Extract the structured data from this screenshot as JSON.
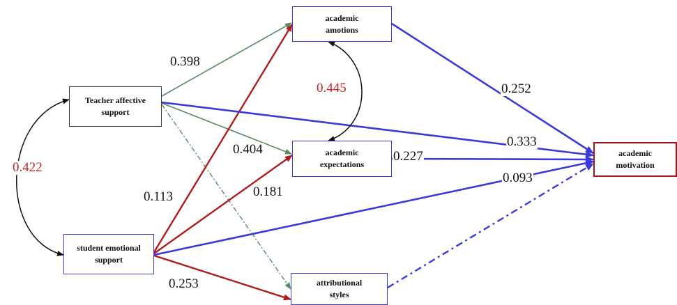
{
  "nodes": {
    "teacher": {
      "line1": "Teacher affective",
      "line2": "support"
    },
    "student": {
      "line1": "student emotional",
      "line2": "support"
    },
    "emotions": {
      "line1": "academic",
      "line2": "amotions"
    },
    "expectations": {
      "line1": "academic",
      "line2": "expectations"
    },
    "attributional": {
      "line1": "attributional",
      "line2": "styles"
    },
    "motivation": {
      "line1": "academic",
      "line2": "motivation"
    }
  },
  "coefficients": {
    "teacher_emotions": "0.398",
    "teacher_expectations": "0.404",
    "teacher_motivation": "0.333",
    "emotions_motivation": "0.252",
    "expectations_motivation": "0.227",
    "student_emotions": "0.113",
    "student_expectations": "0.181",
    "student_motivation": "0.093",
    "student_attributional": "0.253",
    "emotions_expectations_cov": "0.445",
    "teacher_student_cov": "0.422"
  },
  "colors": {
    "green_path": "#5a8a62",
    "red_path": "#b01c1c",
    "blue_path": "#3a3ad8",
    "covariance": "#111111",
    "covariance_label": "#c62828"
  }
}
